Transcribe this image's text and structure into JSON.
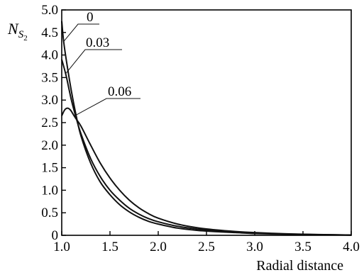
{
  "chart_data": {
    "type": "line",
    "xlabel": "Radial distance",
    "ylabel": {
      "main": "N",
      "sub": "S",
      "subsub": "2"
    },
    "xlim": [
      1.0,
      4.0
    ],
    "ylim": [
      0,
      5.0
    ],
    "x_ticks": [
      "1.0",
      "1.5",
      "2.0",
      "2.5",
      "3.0",
      "3.5",
      "4.0"
    ],
    "x_tick_values": [
      1.0,
      1.5,
      2.0,
      2.5,
      3.0,
      3.5,
      4.0
    ],
    "y_ticks": [
      "0",
      "0.5",
      "1.0",
      "1.5",
      "2.0",
      "2.5",
      "3.0",
      "3.5",
      "4.0",
      "4.5",
      "5.0"
    ],
    "y_tick_values": [
      0,
      0.5,
      1.0,
      1.5,
      2.0,
      2.5,
      3.0,
      3.5,
      4.0,
      4.5,
      5.0
    ],
    "grid": false,
    "series": [
      {
        "name": "0",
        "x": [
          1.0,
          1.02,
          1.05,
          1.1,
          1.15,
          1.2,
          1.3,
          1.4,
          1.5,
          1.6,
          1.7,
          1.8,
          1.9,
          2.0,
          2.2,
          2.4,
          2.6,
          2.8,
          3.0,
          3.3,
          3.6,
          4.0
        ],
        "y": [
          4.75,
          4.3,
          3.85,
          3.2,
          2.65,
          2.2,
          1.6,
          1.18,
          0.9,
          0.68,
          0.52,
          0.4,
          0.31,
          0.25,
          0.16,
          0.11,
          0.08,
          0.06,
          0.04,
          0.025,
          0.015,
          0.005
        ]
      },
      {
        "name": "0.03",
        "x": [
          1.0,
          1.02,
          1.05,
          1.1,
          1.15,
          1.2,
          1.3,
          1.4,
          1.5,
          1.6,
          1.7,
          1.8,
          1.9,
          2.0,
          2.2,
          2.4,
          2.6,
          2.8,
          3.0,
          3.3,
          3.6,
          4.0
        ],
        "y": [
          3.9,
          3.75,
          3.5,
          3.0,
          2.6,
          2.25,
          1.7,
          1.3,
          1.0,
          0.78,
          0.6,
          0.47,
          0.37,
          0.3,
          0.2,
          0.14,
          0.1,
          0.07,
          0.05,
          0.03,
          0.018,
          0.006
        ]
      },
      {
        "name": "0.06",
        "x": [
          1.0,
          1.03,
          1.06,
          1.09,
          1.12,
          1.15,
          1.2,
          1.3,
          1.4,
          1.5,
          1.6,
          1.7,
          1.8,
          1.9,
          2.0,
          2.2,
          2.4,
          2.6,
          2.8,
          3.0,
          3.3,
          3.6,
          4.0
        ],
        "y": [
          2.65,
          2.78,
          2.82,
          2.78,
          2.68,
          2.58,
          2.42,
          2.0,
          1.6,
          1.27,
          1.0,
          0.78,
          0.61,
          0.48,
          0.38,
          0.25,
          0.17,
          0.12,
          0.085,
          0.06,
          0.035,
          0.02,
          0.006
        ]
      }
    ],
    "annotations": [
      {
        "text": "0",
        "series": "0",
        "at_x": 1.02
      },
      {
        "text": "0.03",
        "series": "0.03",
        "at_x": 1.04
      },
      {
        "text": "0.06",
        "series": "0.06",
        "at_x": 1.13
      }
    ]
  }
}
